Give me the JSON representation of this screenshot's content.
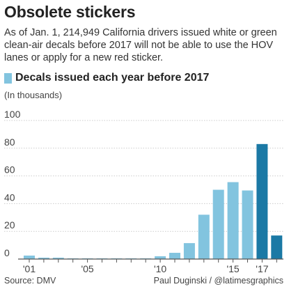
{
  "header": {
    "title": "Obsolete stickers",
    "subtitle": "As of Jan. 1, 214,949 California drivers issued white or green clean-air decals before 2017 will not be able to use the HOV lanes or apply for a new red sticker."
  },
  "legend": {
    "label": "Decals issued each year before 2017"
  },
  "unit_label": "(In thousands)",
  "footer": {
    "source": "Source: DMV",
    "credit": "Paul Duginski / @latimesgraphics"
  },
  "colors": {
    "light_bar": "#82c4df",
    "dark_bar": "#1b79a5",
    "grid": "#cccccc",
    "axis": "#555555",
    "text": "#333333"
  },
  "chart_data": {
    "type": "bar",
    "title": "",
    "ylabel": "(In thousands)",
    "ylim": [
      0,
      100
    ],
    "yticks": [
      0,
      20,
      40,
      60,
      80,
      100
    ],
    "grid": true,
    "categories": [
      "2001",
      "2002",
      "2003",
      "2004",
      "2005",
      "2006",
      "2007",
      "2008",
      "2009",
      "2010",
      "2011",
      "2012",
      "2013",
      "2014",
      "2015",
      "2016",
      "2017",
      "2018"
    ],
    "xtick_labels": [
      {
        "category": "2001",
        "label": "'01"
      },
      {
        "category": "2005",
        "label": "'05"
      },
      {
        "category": "2010",
        "label": "'10"
      },
      {
        "category": "2015",
        "label": "'15"
      },
      {
        "category": "2017",
        "label": "'17"
      }
    ],
    "series": [
      {
        "name": "Decals issued each year before 2017",
        "values": [
          2.5,
          1,
          1,
          0.5,
          0.5,
          0.5,
          0.5,
          0.5,
          0.5,
          2,
          4.5,
          11.5,
          32,
          50,
          55.5,
          49.5,
          83,
          17
        ],
        "colors": [
          "light",
          "light",
          "light",
          "light",
          "light",
          "light",
          "light",
          "light",
          "light",
          "light",
          "light",
          "light",
          "light",
          "light",
          "light",
          "light",
          "dark",
          "dark"
        ]
      }
    ]
  }
}
